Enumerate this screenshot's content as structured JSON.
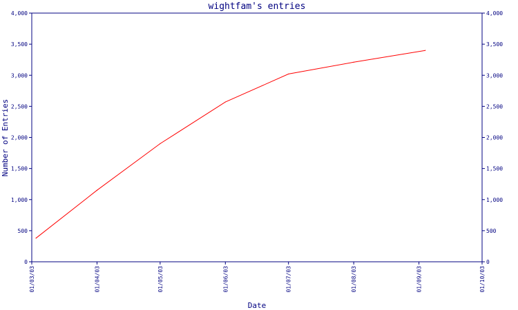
{
  "chart_data": {
    "type": "line",
    "title": "wightfam's entries",
    "xlabel": "Date",
    "ylabel": "Number of Entries",
    "x_ticks": [
      "01/03/03",
      "01/04/03",
      "01/05/03",
      "01/06/03",
      "01/07/03",
      "01/08/03",
      "01/09/03",
      "01/10/03"
    ],
    "x_range": [
      "2003-03-01",
      "2003-10-01"
    ],
    "ylim": [
      0,
      4000
    ],
    "y_ticks": [
      {
        "value": 0,
        "label": "0"
      },
      {
        "value": 500,
        "label": "500"
      },
      {
        "value": 1000,
        "label": "1,000"
      },
      {
        "value": 1500,
        "label": "1,500"
      },
      {
        "value": 2000,
        "label": "2,000"
      },
      {
        "value": 2500,
        "label": "2,500"
      },
      {
        "value": 3000,
        "label": "3,000"
      },
      {
        "value": 3500,
        "label": "3,500"
      },
      {
        "value": 4000,
        "label": "4,000"
      }
    ],
    "grid": false,
    "right_axis": true,
    "colors": {
      "axis": "#000080",
      "line": "#ff0000",
      "background": "#ffffff"
    },
    "series": [
      {
        "x": [
          "2003-03-03",
          "2003-04-01",
          "2003-05-01",
          "2003-06-01",
          "2003-07-01",
          "2003-08-01",
          "2003-09-04"
        ],
        "y": [
          380,
          1150,
          1900,
          2570,
          3020,
          3210,
          3400
        ]
      }
    ]
  }
}
